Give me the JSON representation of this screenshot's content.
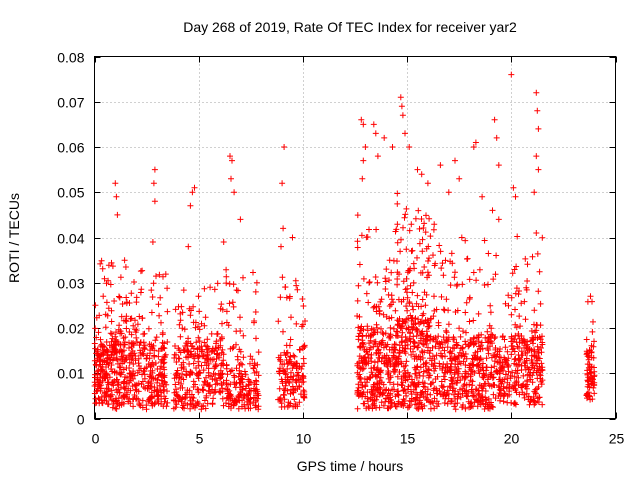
{
  "chart_data": {
    "type": "scatter",
    "title": "Day 268 of 2019, Rate Of TEC Index for receiver yar2",
    "xlabel": "GPS time / hours",
    "ylabel": "ROTI / TECUs",
    "xlim": [
      0,
      25
    ],
    "ylim": [
      0,
      0.08
    ],
    "x_ticks": [
      0,
      5,
      10,
      15,
      20,
      25
    ],
    "y_ticks": [
      0,
      0.01,
      0.02,
      0.03,
      0.04,
      0.05,
      0.06,
      0.07,
      0.08
    ],
    "x_tick_labels": [
      "0",
      "5",
      "10",
      "15",
      "20",
      "25"
    ],
    "y_tick_labels": [
      "0",
      "0.01",
      "0.02",
      "0.03",
      "0.04",
      "0.05",
      "0.06",
      "0.07",
      "0.08"
    ],
    "grid": true,
    "marker": "+",
    "series": [
      {
        "name": "yar2",
        "color": "#ff0000",
        "clusters": [
          {
            "x_range": [
              0.0,
              0.7
            ],
            "y_base": [
              0.003,
              0.016
            ],
            "y_max": 0.035,
            "count": 140
          },
          {
            "x_range": [
              0.7,
              2.0
            ],
            "y_base": [
              0.002,
              0.018
            ],
            "y_max": 0.035,
            "count": 220
          },
          {
            "x_range": [
              2.0,
              3.5
            ],
            "y_base": [
              0.002,
              0.016
            ],
            "y_max": 0.033,
            "count": 200
          },
          {
            "x_range": [
              3.8,
              6.2
            ],
            "y_base": [
              0.002,
              0.016
            ],
            "y_max": 0.03,
            "count": 300
          },
          {
            "x_range": [
              6.3,
              7.9
            ],
            "y_base": [
              0.002,
              0.012
            ],
            "y_max": 0.033,
            "count": 180
          },
          {
            "x_range": [
              8.8,
              10.1
            ],
            "y_base": [
              0.002,
              0.014
            ],
            "y_max": 0.032,
            "count": 150
          },
          {
            "x_range": [
              12.6,
              14.4
            ],
            "y_base": [
              0.002,
              0.02
            ],
            "y_max": 0.045,
            "count": 320
          },
          {
            "x_range": [
              14.4,
              16.3
            ],
            "y_base": [
              0.002,
              0.022
            ],
            "y_max": 0.05,
            "count": 380
          },
          {
            "x_range": [
              16.3,
              19.3
            ],
            "y_base": [
              0.002,
              0.018
            ],
            "y_max": 0.04,
            "count": 420
          },
          {
            "x_range": [
              19.3,
              20.0
            ],
            "y_base": [
              0.003,
              0.014
            ],
            "y_max": 0.03,
            "count": 80
          },
          {
            "x_range": [
              20.0,
              21.5
            ],
            "y_base": [
              0.003,
              0.018
            ],
            "y_max": 0.042,
            "count": 220
          },
          {
            "x_range": [
              23.6,
              24.0
            ],
            "y_base": [
              0.004,
              0.015
            ],
            "y_max": 0.027,
            "count": 70
          }
        ],
        "peaks": [
          [
            1.0,
            0.052
          ],
          [
            1.1,
            0.045
          ],
          [
            1.05,
            0.049
          ],
          [
            2.9,
            0.055
          ],
          [
            2.85,
            0.052
          ],
          [
            2.9,
            0.048
          ],
          [
            2.8,
            0.039
          ],
          [
            4.6,
            0.047
          ],
          [
            4.7,
            0.05
          ],
          [
            4.8,
            0.051
          ],
          [
            4.5,
            0.038
          ],
          [
            6.5,
            0.058
          ],
          [
            6.6,
            0.057
          ],
          [
            6.55,
            0.053
          ],
          [
            6.7,
            0.05
          ],
          [
            7.0,
            0.044
          ],
          [
            6.2,
            0.039
          ],
          [
            9.1,
            0.06
          ],
          [
            9.0,
            0.052
          ],
          [
            9.05,
            0.042
          ],
          [
            8.95,
            0.038
          ],
          [
            9.5,
            0.04
          ],
          [
            12.8,
            0.066
          ],
          [
            12.9,
            0.065
          ],
          [
            13.0,
            0.06
          ],
          [
            12.9,
            0.057
          ],
          [
            12.85,
            0.053
          ],
          [
            13.5,
            0.063
          ],
          [
            13.4,
            0.065
          ],
          [
            13.6,
            0.058
          ],
          [
            13.9,
            0.062
          ],
          [
            14.3,
            0.06
          ],
          [
            14.7,
            0.071
          ],
          [
            14.75,
            0.069
          ],
          [
            14.8,
            0.067
          ],
          [
            14.9,
            0.063
          ],
          [
            15.1,
            0.06
          ],
          [
            15.5,
            0.055
          ],
          [
            15.7,
            0.054
          ],
          [
            16.0,
            0.052
          ],
          [
            16.6,
            0.056
          ],
          [
            17.0,
            0.05
          ],
          [
            17.3,
            0.057
          ],
          [
            17.5,
            0.053
          ],
          [
            18.2,
            0.06
          ],
          [
            18.3,
            0.061
          ],
          [
            18.6,
            0.049
          ],
          [
            19.2,
            0.066
          ],
          [
            19.3,
            0.062
          ],
          [
            19.4,
            0.056
          ],
          [
            19.1,
            0.046
          ],
          [
            19.4,
            0.044
          ],
          [
            20.0,
            0.076
          ],
          [
            20.1,
            0.051
          ],
          [
            20.2,
            0.049
          ],
          [
            21.2,
            0.072
          ],
          [
            21.25,
            0.068
          ],
          [
            21.3,
            0.064
          ],
          [
            21.2,
            0.058
          ],
          [
            21.3,
            0.055
          ],
          [
            21.1,
            0.05
          ],
          [
            21.2,
            0.041
          ],
          [
            23.8,
            0.027
          ]
        ]
      }
    ]
  }
}
